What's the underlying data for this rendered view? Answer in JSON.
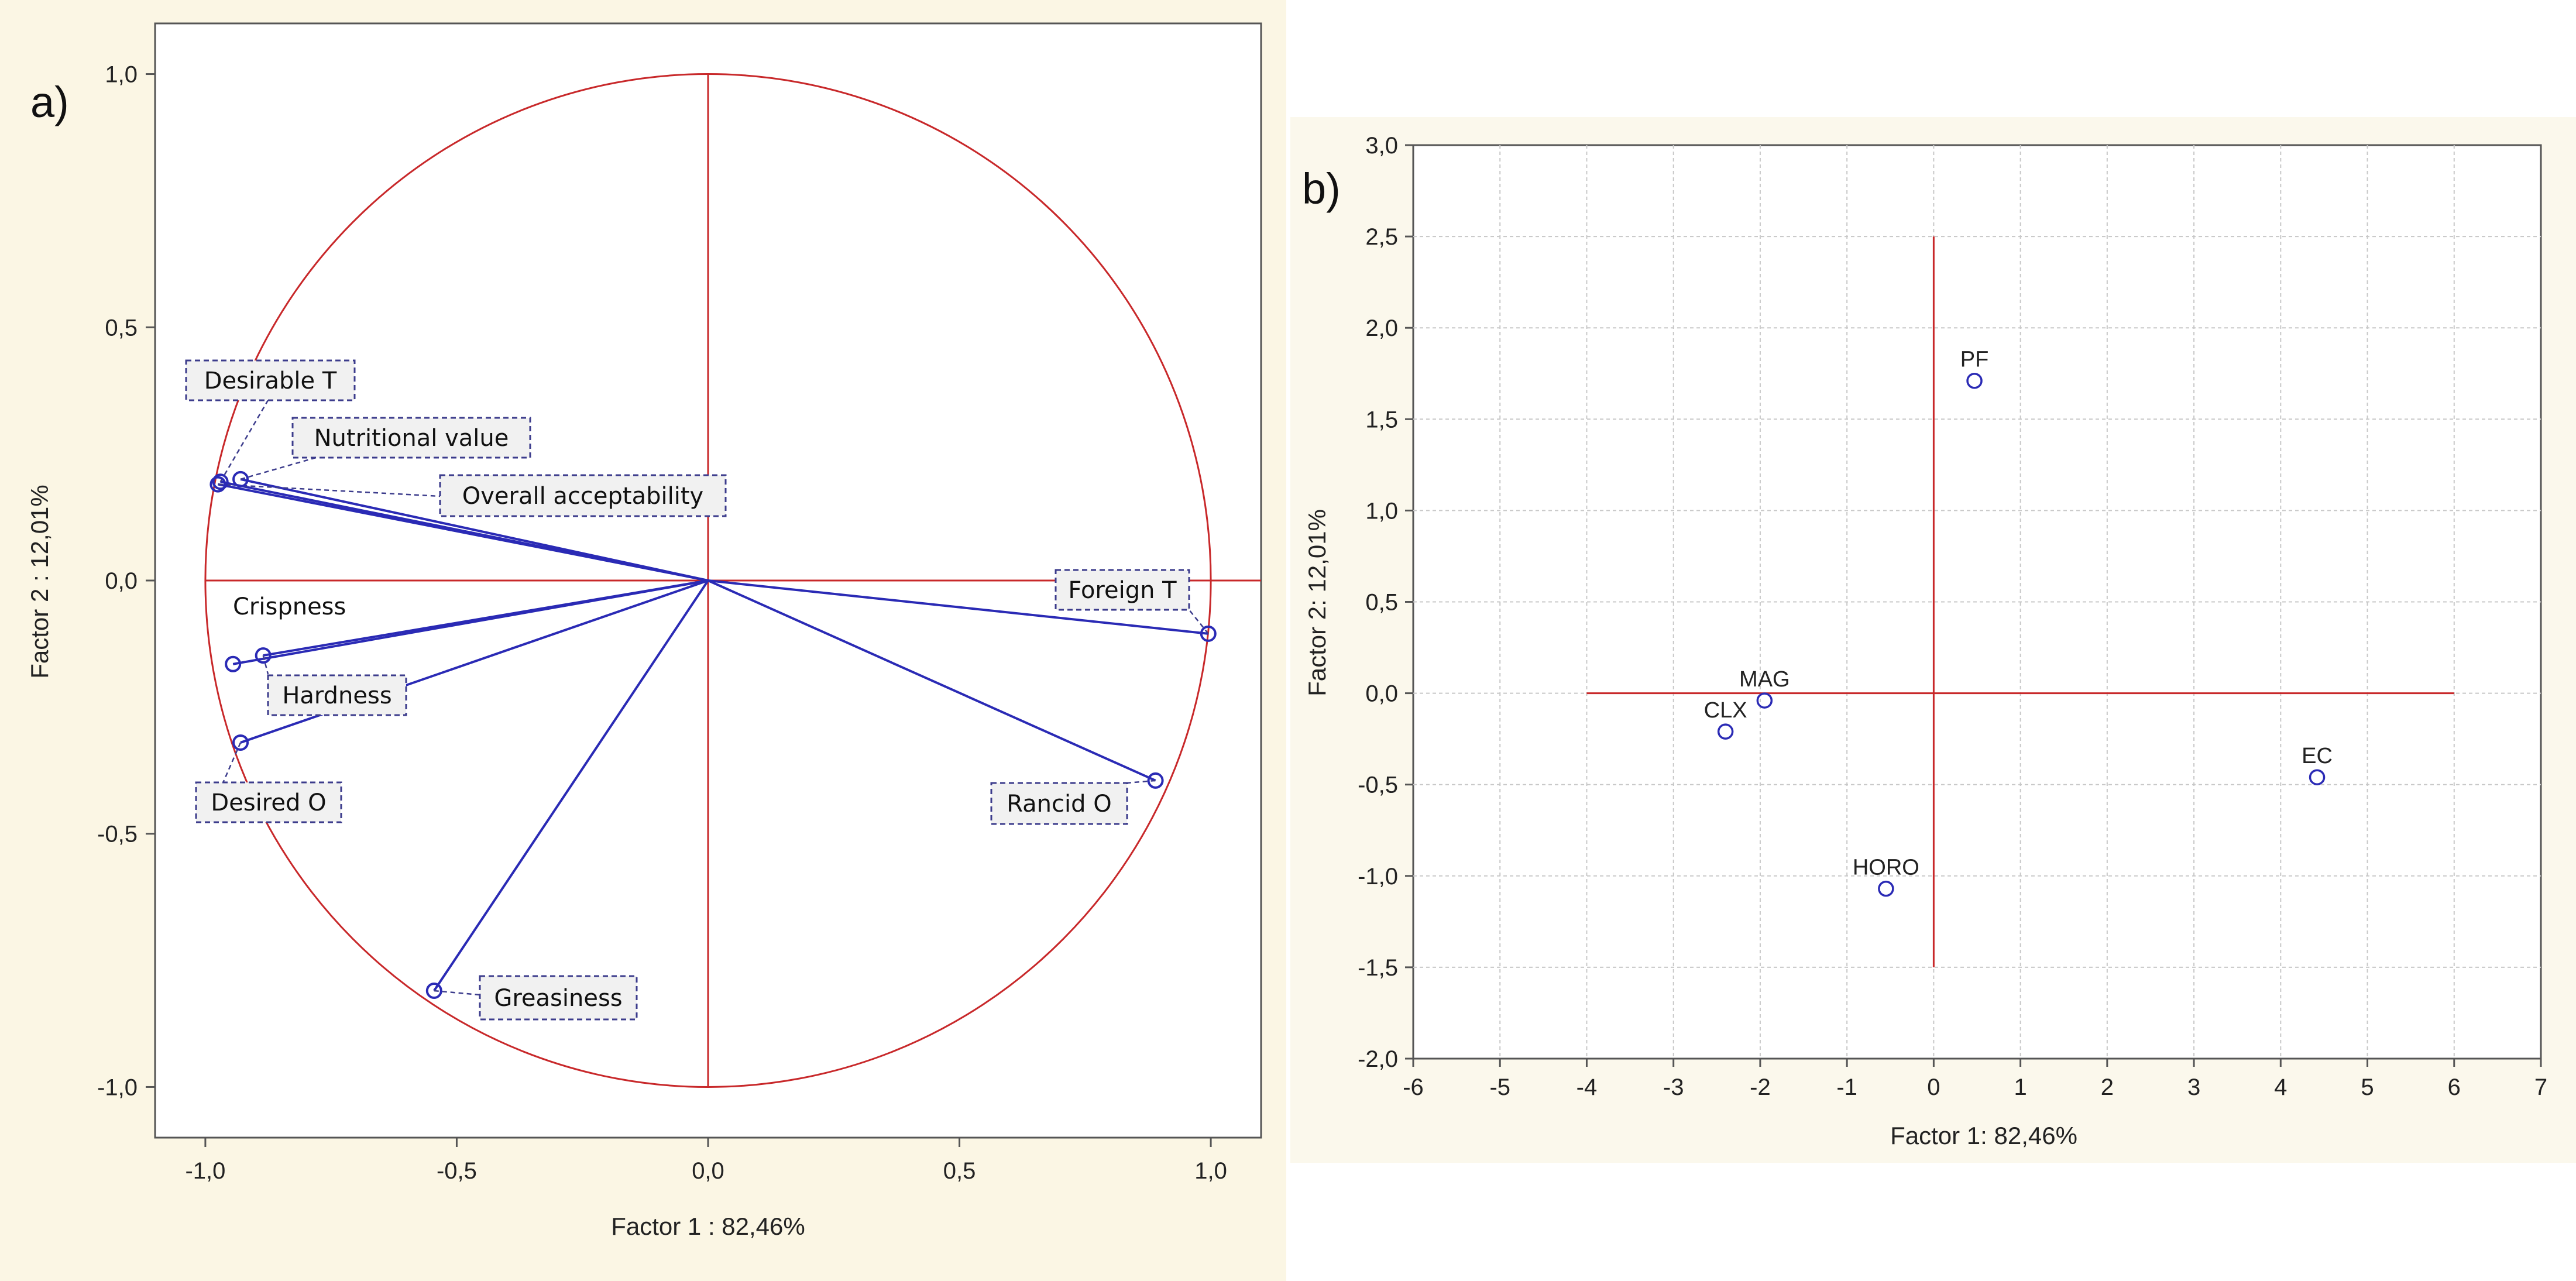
{
  "chart_data": [
    {
      "type": "scatter",
      "subtype": "correlation-circle",
      "panel_label": "a)",
      "xlabel": "Factor 1 : 82,46%",
      "ylabel": "Factor 2 : 12,01%",
      "xlim": [
        -1.1,
        1.1
      ],
      "ylim": [
        -1.1,
        1.1
      ],
      "x_ticks": [
        "-1,0",
        "-0,5",
        "0,0",
        "0,5",
        "1,0"
      ],
      "x_tick_values": [
        -1.0,
        -0.5,
        0.0,
        0.5,
        1.0
      ],
      "y_ticks": [
        "1,0",
        "0,5",
        "0,0",
        "-0,5",
        "-1,0"
      ],
      "y_tick_values": [
        1.0,
        0.5,
        0.0,
        -0.5,
        -1.0
      ],
      "unit_circle": true,
      "variables": [
        {
          "name": "Desirable T",
          "x": -0.97,
          "y": 0.195,
          "boxed": true
        },
        {
          "name": "Nutritional value",
          "x": -0.93,
          "y": 0.2,
          "boxed": true
        },
        {
          "name": "Overall acceptability",
          "x": -0.975,
          "y": 0.19,
          "boxed": true
        },
        {
          "name": "Crispness",
          "x": -0.945,
          "y": -0.165,
          "boxed": false
        },
        {
          "name": "Hardness",
          "x": -0.885,
          "y": -0.148,
          "boxed": true
        },
        {
          "name": "Desired O",
          "x": -0.93,
          "y": -0.32,
          "boxed": true
        },
        {
          "name": "Greasiness",
          "x": -0.545,
          "y": -0.81,
          "boxed": true
        },
        {
          "name": "Foreign T",
          "x": 0.995,
          "y": -0.105,
          "boxed": true
        },
        {
          "name": "Rancid O",
          "x": 0.89,
          "y": -0.395,
          "boxed": true
        }
      ]
    },
    {
      "type": "scatter",
      "panel_label": "b)",
      "xlabel": "Factor 1: 82,46%",
      "ylabel": "Factor 2: 12,01%",
      "xlim": [
        -6,
        7
      ],
      "ylim": [
        -2.0,
        3.0
      ],
      "x_ticks": [
        "-6",
        "-5",
        "-4",
        "-3",
        "-2",
        "-1",
        "0",
        "1",
        "2",
        "3",
        "4",
        "5",
        "6",
        "7"
      ],
      "x_tick_values": [
        -6,
        -5,
        -4,
        -3,
        -2,
        -1,
        0,
        1,
        2,
        3,
        4,
        5,
        6,
        7
      ],
      "y_ticks": [
        "3,0",
        "2,5",
        "2,0",
        "1,5",
        "1,0",
        "0,5",
        "0,0",
        "-0,5",
        "-1,0",
        "-1,5",
        "-2,0"
      ],
      "y_tick_values": [
        3.0,
        2.5,
        2.0,
        1.5,
        1.0,
        0.5,
        0.0,
        -0.5,
        -1.0,
        -1.5,
        -2.0
      ],
      "grid": true,
      "reference_lines": {
        "x_span": [
          -4,
          6
        ],
        "y_span": [
          -1.5,
          2.5
        ]
      },
      "points": [
        {
          "name": "PF",
          "x": 0.47,
          "y": 1.71
        },
        {
          "name": "MAG",
          "x": -1.95,
          "y": -0.04
        },
        {
          "name": "CLX",
          "x": -2.4,
          "y": -0.21
        },
        {
          "name": "EC",
          "x": 4.42,
          "y": -0.46
        },
        {
          "name": "HORO",
          "x": -0.55,
          "y": -1.07
        }
      ]
    }
  ],
  "colors": {
    "page": "#ffffff",
    "panel_a_background": "#fbf6e4",
    "panel_b_background": "#fbf8ec",
    "circle_and_reference": "#c8282a",
    "vectors_and_markers": "#2a2ab5",
    "label_box_border": "#3c3c8c",
    "grid": "#c8c8c8"
  }
}
